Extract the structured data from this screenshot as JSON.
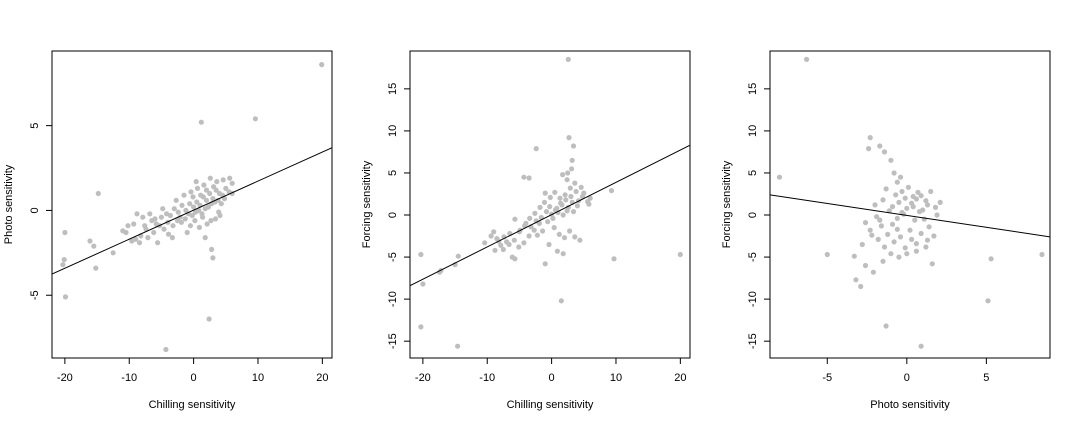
{
  "chart_data": [
    {
      "type": "scatter",
      "xlabel": "Chilling sensitivity",
      "ylabel": "Photo sensitivity",
      "xlim": [
        -22,
        21.5
      ],
      "ylim": [
        -8.7,
        9.4
      ],
      "xticks": [
        -20,
        -10,
        0,
        10,
        20
      ],
      "yticks": [
        -5,
        0,
        5
      ],
      "fit_line": {
        "x": [
          -22,
          21.5
        ],
        "y": [
          -3.75,
          3.7
        ]
      },
      "point_color": "#bebebe",
      "line_color": "#000000",
      "points": [
        [
          19.9,
          8.6
        ],
        [
          9.6,
          5.4
        ],
        [
          1.2,
          5.2
        ],
        [
          -14.8,
          1.0
        ],
        [
          -20.1,
          -2.9
        ],
        [
          -20.3,
          -3.2
        ],
        [
          -19.9,
          -5.1
        ],
        [
          -20.0,
          -1.3
        ],
        [
          -15.2,
          -3.4
        ],
        [
          -16.1,
          -1.8
        ],
        [
          -15.5,
          -2.1
        ],
        [
          -12.5,
          -2.5
        ],
        [
          -4.3,
          -8.2
        ],
        [
          2.4,
          -6.4
        ],
        [
          3.0,
          -2.8
        ],
        [
          2.8,
          -2.3
        ],
        [
          1.8,
          -1.6
        ],
        [
          -10.5,
          -1.3
        ],
        [
          -9.6,
          -1.8
        ],
        [
          -9.0,
          -1.7
        ],
        [
          -8.2,
          -1.5
        ],
        [
          -7.4,
          -1.1
        ],
        [
          -6.5,
          -0.6
        ],
        [
          -5.8,
          -0.8
        ],
        [
          -5.0,
          -0.4
        ],
        [
          -4.2,
          -0.2
        ],
        [
          -3.6,
          -0.3
        ],
        [
          -3.0,
          0.1
        ],
        [
          -2.4,
          -0.1
        ],
        [
          -1.8,
          0.3
        ],
        [
          -1.2,
          0.0
        ],
        [
          -0.6,
          0.4
        ],
        [
          0.0,
          0.2
        ],
        [
          0.5,
          0.5
        ],
        [
          1.0,
          0.3
        ],
        [
          1.5,
          0.8
        ],
        [
          2.0,
          0.6
        ],
        [
          2.5,
          1.0
        ],
        [
          3.0,
          0.7
        ],
        [
          3.5,
          1.2
        ],
        [
          4.0,
          1.0
        ],
        [
          4.5,
          0.9
        ],
        [
          5.0,
          1.3
        ],
        [
          5.5,
          1.1
        ],
        [
          6.0,
          1.0
        ],
        [
          -8.8,
          -0.2
        ],
        [
          -7.9,
          -0.4
        ],
        [
          -6.2,
          -1.3
        ],
        [
          -5.3,
          -0.9
        ],
        [
          -4.6,
          -1.1
        ],
        [
          -3.9,
          -1.4
        ],
        [
          -3.2,
          -0.9
        ],
        [
          -2.5,
          -0.6
        ],
        [
          -1.9,
          -0.7
        ],
        [
          -1.3,
          -0.5
        ],
        [
          -0.8,
          -0.2
        ],
        [
          -0.2,
          -0.3
        ],
        [
          0.3,
          -0.1
        ],
        [
          0.8,
          0.0
        ],
        [
          1.3,
          -0.2
        ],
        [
          1.8,
          0.1
        ],
        [
          2.3,
          0.2
        ],
        [
          2.8,
          0.4
        ],
        [
          3.3,
          0.5
        ],
        [
          3.8,
          0.6
        ],
        [
          4.3,
          0.4
        ],
        [
          4.8,
          0.7
        ],
        [
          -1.5,
          0.9
        ],
        [
          -0.4,
          1.1
        ],
        [
          0.6,
          1.3
        ],
        [
          1.6,
          1.5
        ],
        [
          2.6,
          1.9
        ],
        [
          3.6,
          1.7
        ],
        [
          4.6,
          1.8
        ],
        [
          5.6,
          1.9
        ],
        [
          6.0,
          1.6
        ],
        [
          0.4,
          1.7
        ],
        [
          2.0,
          1.2
        ],
        [
          -2.7,
          0.6
        ],
        [
          -4.8,
          0.1
        ],
        [
          -6.8,
          -0.2
        ],
        [
          -9.3,
          -0.8
        ],
        [
          -10.2,
          -0.9
        ],
        [
          -11.0,
          -1.2
        ],
        [
          -8.4,
          -1.9
        ],
        [
          -7.1,
          -1.6
        ],
        [
          -5.6,
          -1.9
        ],
        [
          -3.3,
          -1.6
        ],
        [
          -1.0,
          -1.3
        ],
        [
          0.9,
          -1.0
        ],
        [
          2.1,
          -0.8
        ],
        [
          3.4,
          -0.5
        ],
        [
          4.1,
          -0.3
        ],
        [
          -0.1,
          0.8
        ],
        [
          1.1,
          0.9
        ],
        [
          3.1,
          1.4
        ],
        [
          -2.1,
          -0.4
        ],
        [
          -4.0,
          -0.7
        ],
        [
          -6.0,
          -0.5
        ],
        [
          -7.6,
          -0.9
        ],
        [
          -0.5,
          -0.9
        ],
        [
          0.2,
          -0.6
        ],
        [
          1.4,
          -0.4
        ],
        [
          2.7,
          -0.6
        ],
        [
          3.9,
          -0.1
        ]
      ]
    },
    {
      "type": "scatter",
      "xlabel": "Chilling sensitivity",
      "ylabel": "Forcing sensitivity",
      "xlim": [
        -22,
        21.5
      ],
      "ylim": [
        -17,
        19.5
      ],
      "xticks": [
        -20,
        -10,
        0,
        10,
        20
      ],
      "yticks": [
        -15,
        -10,
        -5,
        0,
        5,
        10,
        15
      ],
      "fit_line": {
        "x": [
          -22,
          21.5
        ],
        "y": [
          -8.4,
          8.3
        ]
      },
      "point_color": "#bebebe",
      "line_color": "#000000",
      "points": [
        [
          2.6,
          18.5
        ],
        [
          20.0,
          -4.7
        ],
        [
          -20.3,
          -13.3
        ],
        [
          -20.0,
          -8.2
        ],
        [
          -20.3,
          -4.7
        ],
        [
          -14.6,
          -15.6
        ],
        [
          -15.0,
          -5.9
        ],
        [
          -14.5,
          -4.9
        ],
        [
          -17.4,
          -6.8
        ],
        [
          -17.2,
          -6.6
        ],
        [
          1.5,
          -10.2
        ],
        [
          9.7,
          -5.2
        ],
        [
          9.3,
          2.9
        ],
        [
          -2.4,
          7.9
        ],
        [
          2.7,
          9.2
        ],
        [
          3.4,
          8.2
        ],
        [
          3.2,
          6.5
        ],
        [
          2.5,
          5.0
        ],
        [
          1.7,
          4.8
        ],
        [
          -3.5,
          4.4
        ],
        [
          -4.3,
          4.5
        ],
        [
          -1.0,
          -5.8
        ],
        [
          -5.7,
          -5.2
        ],
        [
          -10.4,
          -3.3
        ],
        [
          -9.4,
          -2.5
        ],
        [
          -8.5,
          -2.8
        ],
        [
          -7.5,
          -4.1
        ],
        [
          -6.5,
          -2.2
        ],
        [
          -5.7,
          -0.5
        ],
        [
          -4.9,
          -1.8
        ],
        [
          -4.0,
          -1.0
        ],
        [
          -3.2,
          -1.4
        ],
        [
          -2.4,
          -0.7
        ],
        [
          -1.6,
          -0.3
        ],
        [
          -0.8,
          0.4
        ],
        [
          0.0,
          0.1
        ],
        [
          0.8,
          0.8
        ],
        [
          1.6,
          1.2
        ],
        [
          2.4,
          0.5
        ],
        [
          3.2,
          1.5
        ],
        [
          4.0,
          1.1
        ],
        [
          4.8,
          2.2
        ],
        [
          5.6,
          1.6
        ],
        [
          6.0,
          2.0
        ],
        [
          3.6,
          3.8
        ],
        [
          2.9,
          3.2
        ],
        [
          2.1,
          2.4
        ],
        [
          1.3,
          2.0
        ],
        [
          0.5,
          2.7
        ],
        [
          -0.3,
          1.0
        ],
        [
          -1.1,
          1.5
        ],
        [
          -1.9,
          -1.0
        ],
        [
          -2.7,
          -1.8
        ],
        [
          -3.5,
          -2.5
        ],
        [
          -4.3,
          -3.3
        ],
        [
          -5.1,
          -3.8
        ],
        [
          -6.1,
          -5.0
        ],
        [
          -7.0,
          -3.2
        ],
        [
          -7.9,
          -3.6
        ],
        [
          -8.8,
          -4.2
        ],
        [
          0.4,
          -1.5
        ],
        [
          1.2,
          -2.3
        ],
        [
          2.0,
          -2.7
        ],
        [
          2.8,
          -1.9
        ],
        [
          3.6,
          -2.6
        ],
        [
          4.4,
          -3.0
        ],
        [
          0.9,
          -4.3
        ],
        [
          1.8,
          -4.6
        ],
        [
          -0.4,
          -3.5
        ],
        [
          -2.2,
          -2.4
        ],
        [
          -1.4,
          -1.9
        ],
        [
          -0.6,
          -0.8
        ],
        [
          0.2,
          -0.4
        ],
        [
          1.0,
          0.3
        ],
        [
          1.8,
          0.0
        ],
        [
          2.6,
          0.9
        ],
        [
          3.4,
          0.4
        ],
        [
          4.2,
          1.7
        ],
        [
          5.0,
          2.6
        ],
        [
          5.8,
          1.3
        ],
        [
          4.6,
          3.3
        ],
        [
          3.8,
          2.8
        ],
        [
          3.0,
          2.2
        ],
        [
          2.2,
          1.8
        ],
        [
          1.4,
          1.4
        ],
        [
          0.6,
          0.6
        ],
        [
          -0.2,
          2.1
        ],
        [
          -1.0,
          2.6
        ],
        [
          -1.8,
          0.9
        ],
        [
          -2.6,
          0.2
        ],
        [
          -3.4,
          -0.4
        ],
        [
          -4.2,
          -1.3
        ],
        [
          -5.0,
          -2.0
        ],
        [
          -5.8,
          -3.0
        ],
        [
          -6.6,
          -3.5
        ],
        [
          -7.4,
          -2.6
        ],
        [
          -8.2,
          -3.1
        ],
        [
          -9.0,
          -2.0
        ],
        [
          2.4,
          4.2
        ],
        [
          3.1,
          5.5
        ]
      ]
    },
    {
      "type": "scatter",
      "xlabel": "Photo sensitivity",
      "ylabel": "Forcing sensitivity",
      "xlim": [
        -8.6,
        9.0
      ],
      "ylim": [
        -17,
        19.5
      ],
      "xticks": [
        -5,
        0,
        5
      ],
      "yticks": [
        -15,
        -10,
        -5,
        0,
        5,
        10,
        15
      ],
      "fit_line": {
        "x": [
          -8.6,
          9.0
        ],
        "y": [
          2.4,
          -2.6
        ]
      },
      "point_color": "#bebebe",
      "line_color": "#000000",
      "points": [
        [
          -6.3,
          18.5
        ],
        [
          -8.0,
          4.5
        ],
        [
          -5.0,
          -4.7
        ],
        [
          -3.2,
          -7.7
        ],
        [
          -2.9,
          -8.5
        ],
        [
          -1.3,
          -13.2
        ],
        [
          0.9,
          -15.6
        ],
        [
          5.1,
          -10.2
        ],
        [
          5.3,
          -5.2
        ],
        [
          8.5,
          -4.7
        ],
        [
          -2.4,
          7.9
        ],
        [
          -2.3,
          9.2
        ],
        [
          -1.7,
          8.2
        ],
        [
          -1.4,
          7.5
        ],
        [
          -1.0,
          6.5
        ],
        [
          -0.8,
          5.0
        ],
        [
          -0.4,
          4.5
        ],
        [
          -0.6,
          3.9
        ],
        [
          -3.3,
          -4.9
        ],
        [
          -2.6,
          -6.0
        ],
        [
          -2.1,
          -6.8
        ],
        [
          -1.5,
          -5.5
        ],
        [
          -1.0,
          -4.6
        ],
        [
          -0.5,
          -5.0
        ],
        [
          0.0,
          -4.6
        ],
        [
          0.6,
          -4.3
        ],
        [
          1.2,
          -3.8
        ],
        [
          1.6,
          -5.8
        ],
        [
          -1.9,
          -0.2
        ],
        [
          -1.6,
          -1.3
        ],
        [
          -1.2,
          -2.3
        ],
        [
          -0.9,
          -1.1
        ],
        [
          -0.6,
          -0.4
        ],
        [
          -0.3,
          0.3
        ],
        [
          0.0,
          0.8
        ],
        [
          0.3,
          1.4
        ],
        [
          0.6,
          1.9
        ],
        [
          0.9,
          2.3
        ],
        [
          1.2,
          1.7
        ],
        [
          1.5,
          2.8
        ],
        [
          1.8,
          0.9
        ],
        [
          -1.3,
          3.1
        ],
        [
          -0.7,
          2.4
        ],
        [
          -0.1,
          2.0
        ],
        [
          0.4,
          1.0
        ],
        [
          0.8,
          0.4
        ],
        [
          1.1,
          -0.5
        ],
        [
          1.4,
          -1.4
        ],
        [
          0.2,
          -1.8
        ],
        [
          -0.4,
          -2.6
        ],
        [
          -0.8,
          -3.2
        ],
        [
          -1.8,
          -2.9
        ],
        [
          -2.3,
          -1.8
        ],
        [
          -2.6,
          -0.9
        ],
        [
          -2.0,
          1.2
        ],
        [
          -1.5,
          1.8
        ],
        [
          -0.9,
          1.0
        ],
        [
          -0.2,
          0.1
        ],
        [
          0.5,
          -0.6
        ],
        [
          1.0,
          0.6
        ],
        [
          1.3,
          1.2
        ],
        [
          0.7,
          2.7
        ],
        [
          0.1,
          3.3
        ],
        [
          -0.3,
          2.8
        ],
        [
          -1.1,
          0.5
        ],
        [
          -1.7,
          -0.6
        ],
        [
          -2.2,
          -2.4
        ],
        [
          -2.8,
          -3.5
        ],
        [
          -0.6,
          -1.7
        ],
        [
          0.3,
          -2.9
        ],
        [
          0.9,
          -2.2
        ],
        [
          1.3,
          -3.0
        ],
        [
          -1.4,
          -3.8
        ],
        [
          -0.1,
          -3.9
        ],
        [
          0.6,
          -3.4
        ],
        [
          1.7,
          -2.5
        ],
        [
          1.9,
          0.0
        ],
        [
          2.1,
          1.5
        ],
        [
          0.4,
          2.2
        ],
        [
          -0.5,
          1.5
        ]
      ]
    }
  ]
}
